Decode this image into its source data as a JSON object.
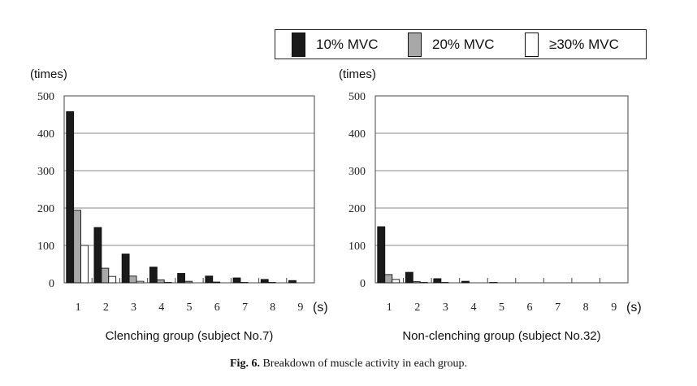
{
  "chart_data": [
    {
      "type": "bar",
      "unit_label": "(times)",
      "xunit": "(s)",
      "subtitle": "Clenching group (subject No.7)",
      "categories": [
        "1",
        "2",
        "3",
        "4",
        "5",
        "6",
        "7",
        "8",
        "9"
      ],
      "ylim": [
        0,
        500
      ],
      "yticks": [
        0,
        100,
        200,
        300,
        400,
        500
      ],
      "grid": true,
      "series": [
        {
          "name": "10% MVC",
          "values": [
            458,
            148,
            77,
            42,
            25,
            18,
            13,
            9,
            6
          ]
        },
        {
          "name": "20% MVC",
          "values": [
            194,
            39,
            18,
            8,
            4,
            2,
            1,
            1,
            0
          ]
        },
        {
          "name": "≥30% MVC",
          "values": [
            100,
            17,
            4,
            1,
            0,
            0,
            0,
            0,
            0
          ]
        }
      ]
    },
    {
      "type": "bar",
      "unit_label": "(times)",
      "xunit": "(s)",
      "subtitle": "Non-clenching group (subject No.32)",
      "categories": [
        "1",
        "2",
        "3",
        "4",
        "5",
        "6",
        "7",
        "8",
        "9"
      ],
      "ylim": [
        0,
        500
      ],
      "yticks": [
        0,
        100,
        200,
        300,
        400,
        500
      ],
      "grid": true,
      "series": [
        {
          "name": "10% MVC",
          "values": [
            150,
            28,
            11,
            4,
            1,
            0,
            0,
            0,
            0
          ]
        },
        {
          "name": "20% MVC",
          "values": [
            22,
            3,
            1,
            0,
            0,
            0,
            0,
            0,
            0
          ]
        },
        {
          "name": "≥30% MVC",
          "values": [
            9,
            1,
            0,
            0,
            0,
            0,
            0,
            0,
            0
          ]
        }
      ]
    }
  ],
  "legend": {
    "items": [
      {
        "label": "10% MVC",
        "color": "#1a1a1a"
      },
      {
        "label": "20% MVC",
        "color": "#a8a8a8"
      },
      {
        "label": "≥30% MVC",
        "color": "#ffffff"
      }
    ]
  },
  "caption": {
    "label": "Fig. 6.",
    "text": "Breakdown of muscle activity in each group."
  }
}
